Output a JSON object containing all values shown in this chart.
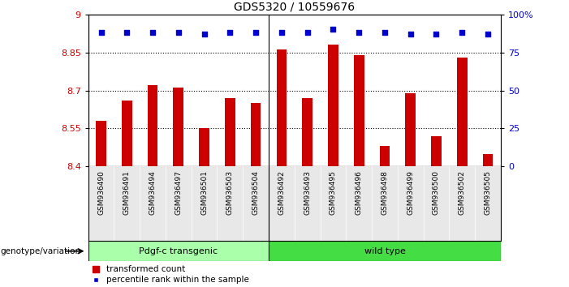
{
  "title": "GDS5320 / 10559676",
  "categories": [
    "GSM936490",
    "GSM936491",
    "GSM936494",
    "GSM936497",
    "GSM936501",
    "GSM936503",
    "GSM936504",
    "GSM936492",
    "GSM936493",
    "GSM936495",
    "GSM936496",
    "GSM936498",
    "GSM936499",
    "GSM936500",
    "GSM936502",
    "GSM936505"
  ],
  "bar_values": [
    8.58,
    8.66,
    8.72,
    8.71,
    8.55,
    8.67,
    8.65,
    8.86,
    8.67,
    8.88,
    8.84,
    8.48,
    8.69,
    8.52,
    8.83,
    8.45
  ],
  "percentile_values": [
    88,
    88,
    88,
    88,
    87,
    88,
    88,
    88,
    88,
    90,
    88,
    88,
    87,
    87,
    88,
    87
  ],
  "bar_color": "#cc0000",
  "dot_color": "#0000cc",
  "ylim_left": [
    8.4,
    9.0
  ],
  "ylim_right": [
    0,
    100
  ],
  "yticks_left": [
    8.4,
    8.55,
    8.7,
    8.85,
    9.0
  ],
  "ytick_labels_left": [
    "8.4",
    "8.55",
    "8.7",
    "8.85",
    "9"
  ],
  "yticks_right": [
    0,
    25,
    50,
    75,
    100
  ],
  "ytick_labels_right": [
    "0",
    "25",
    "50",
    "75",
    "100%"
  ],
  "hlines": [
    8.55,
    8.7,
    8.85
  ],
  "group1_label": "Pdgf-c transgenic",
  "group2_label": "wild type",
  "group1_count": 7,
  "group2_count": 9,
  "group1_color": "#aaffaa",
  "group2_color": "#44dd44",
  "legend_bar_label": "transformed count",
  "legend_dot_label": "percentile rank within the sample",
  "genotype_label": "genotype/variation",
  "background_color": "#ffffff",
  "plot_bg_color": "#ffffff",
  "tick_label_color_left": "#cc0000",
  "tick_label_color_right": "#0000cc",
  "separator_color": "#000000",
  "bar_width": 0.4
}
